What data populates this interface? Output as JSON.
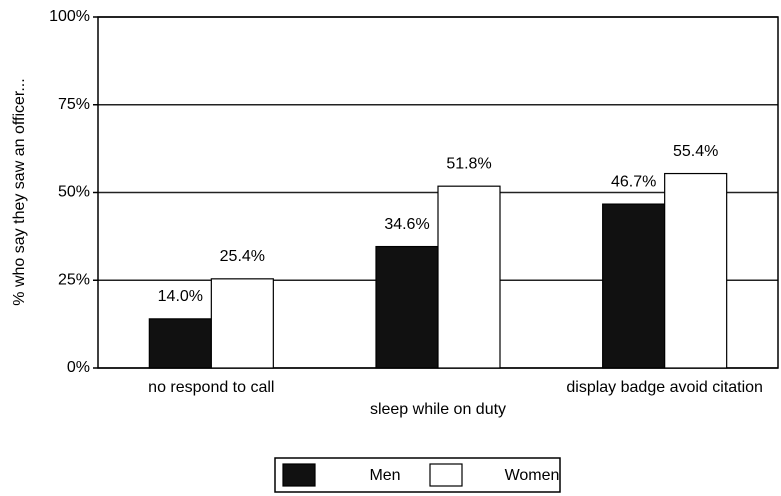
{
  "chart_data": {
    "type": "bar",
    "y_label": "% who say they saw an officer...",
    "categories": [
      "no respond to call",
      "sleep while on duty",
      "display badge avoid citation"
    ],
    "series": [
      {
        "name": "Men",
        "color": "#111111",
        "values": [
          14.0,
          34.6,
          46.7
        ],
        "value_labels": [
          "14.0%",
          "34.6%",
          "46.7%"
        ]
      },
      {
        "name": "Women",
        "color": "#ffffff",
        "values": [
          25.4,
          51.8,
          55.4
        ],
        "value_labels": [
          "25.4%",
          "51.8%",
          "55.4%"
        ]
      }
    ],
    "ylim": [
      0,
      100
    ],
    "yticks": [
      {
        "value": 0,
        "label": "0%"
      },
      {
        "value": 25,
        "label": "25%"
      },
      {
        "value": 50,
        "label": "50%"
      },
      {
        "value": 75,
        "label": "75%"
      },
      {
        "value": 100,
        "label": "100%"
      }
    ],
    "grid": true,
    "legend": "bottom"
  }
}
